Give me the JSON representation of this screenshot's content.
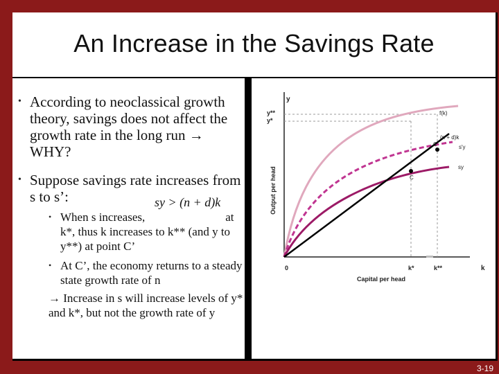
{
  "slide": {
    "title": "An Increase in the Savings Rate",
    "page_number": "3-19"
  },
  "bullets": [
    {
      "text": "According to neoclassical growth theory, savings does not affect the growth rate in the long run → WHY?"
    },
    {
      "text": "Suppose savings rate increases from s to s’:"
    }
  ],
  "sub_bullets": [
    {
      "text_before": "When s increases,",
      "formula": "sy > (n + d)k",
      "text_after": "at k*, thus k increases to k** (and y to y**) at point C’"
    },
    {
      "text": "At C’, the economy returns to a steady state growth rate of n"
    }
  ],
  "conclusion": "→ Increase in s will increase levels of y* and k*, but not the growth rate of y",
  "diagram": {
    "y_axis_label": "Output per head",
    "x_axis_label": "Capital per head",
    "y_axis_symbol": "y",
    "x_axis_symbol": "k",
    "origin_label": "0",
    "y_ticks": [
      "y**",
      "y*"
    ],
    "x_ticks": [
      "k*",
      "k**"
    ],
    "curves": [
      {
        "label": "f(k)",
        "color": "#e0a8bd"
      },
      {
        "label": "s'y",
        "color": "#c03591"
      },
      {
        "label": "sy",
        "color": "#9c1a66"
      },
      {
        "label": "(n + d)k",
        "color": "#000000"
      }
    ],
    "points": [
      "C'",
      "C"
    ]
  },
  "colors": {
    "background": "#8b1a1a",
    "slide": "#ffffff",
    "divider": "#000000"
  }
}
